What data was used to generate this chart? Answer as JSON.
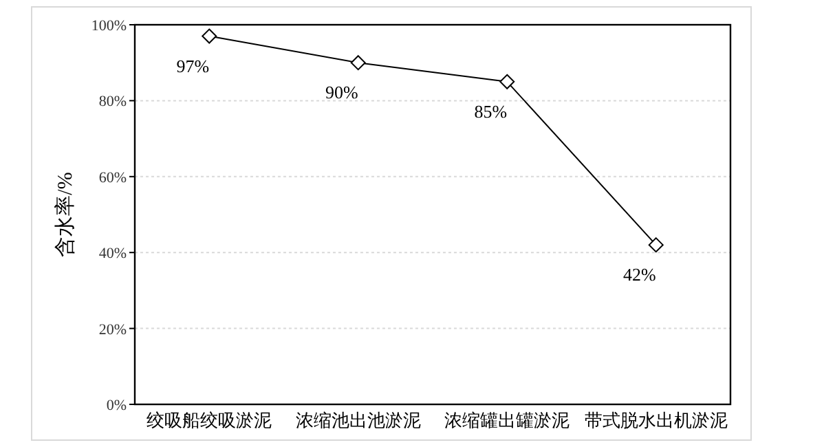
{
  "chart_data": {
    "type": "line",
    "ylabel": "含水率/%",
    "categories": [
      "绞吸船绞吸淤泥",
      "浓缩池出池淤泥",
      "浓缩罐出罐淤泥",
      "带式脱水出机淤泥"
    ],
    "series": [
      {
        "color": "#000000",
        "values": [
          97,
          90,
          85,
          42
        ],
        "value_labels": [
          "97%",
          "90%",
          "85%",
          "42%"
        ]
      }
    ],
    "ylim": [
      0,
      100
    ],
    "yticks": [
      {
        "value": 0,
        "label": "0%"
      },
      {
        "value": 20,
        "label": "20%"
      },
      {
        "value": 40,
        "label": "40%"
      },
      {
        "value": 60,
        "label": "60%"
      },
      {
        "value": 80,
        "label": "80%"
      },
      {
        "value": 100,
        "label": "100%"
      }
    ],
    "grid": "y",
    "marker": "diamond",
    "line_style": "solid"
  }
}
